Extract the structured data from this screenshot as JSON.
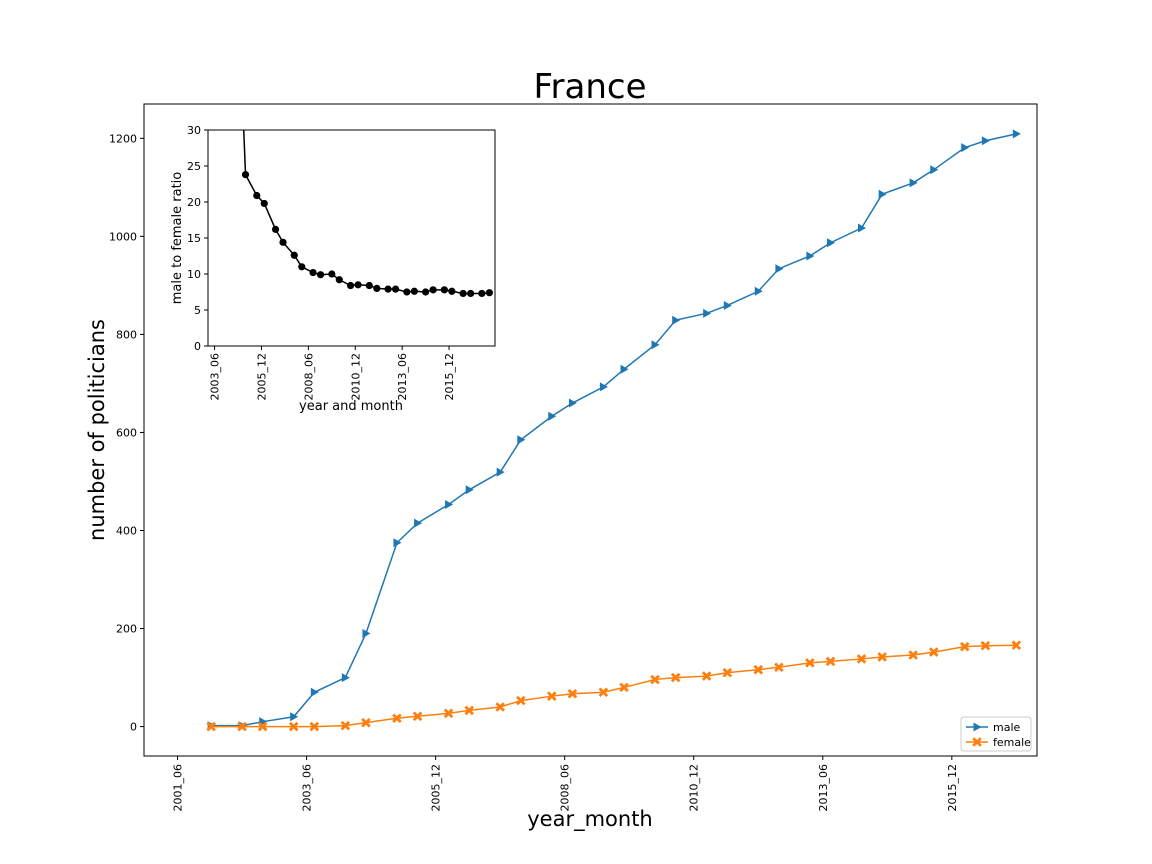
{
  "chart_data": [
    {
      "type": "line",
      "title": "France",
      "xlabel": "year_month",
      "ylabel": "number of politicians",
      "x_tick_labels": [
        "2001_06",
        "2003_06",
        "2005_12",
        "2008_06",
        "2010_12",
        "2013_06",
        "2015_12"
      ],
      "y_ticks": [
        0,
        200,
        400,
        600,
        800,
        1000,
        1200
      ],
      "xlim": [
        -0.65,
        16.65
      ],
      "ylim": [
        -60,
        1270
      ],
      "grid": false,
      "legend": "lower-right",
      "x": [
        0.65,
        1.25,
        1.65,
        2.25,
        2.65,
        3.25,
        3.65,
        4.25,
        4.65,
        5.25,
        5.65,
        6.25,
        6.65,
        7.25,
        7.65,
        8.25,
        8.65,
        9.25,
        9.65,
        10.25,
        10.65,
        11.25,
        11.65,
        12.25,
        12.65,
        13.25,
        13.65,
        14.25,
        14.65,
        15.25,
        15.65,
        16.25
      ],
      "series": [
        {
          "name": "male",
          "color": "#1f77b4",
          "marker": "triangle-right",
          "values": [
            2,
            2,
            10,
            20,
            70,
            100,
            190,
            375,
            415,
            453,
            483,
            519,
            585,
            633,
            660,
            693,
            729,
            779,
            829,
            843,
            859,
            888,
            934,
            960,
            987,
            1017,
            1086,
            1109,
            1136,
            1181,
            1195,
            1209
          ]
        },
        {
          "name": "female",
          "color": "#ff7f0e",
          "marker": "x",
          "values": [
            0,
            0,
            0,
            0,
            0,
            2,
            8,
            17,
            21,
            27,
            33,
            40,
            53,
            62,
            67,
            70,
            80,
            96,
            100,
            103,
            110,
            116,
            121,
            130,
            133,
            138,
            142,
            146,
            152,
            163,
            165,
            166
          ]
        }
      ]
    },
    {
      "type": "line",
      "title": "",
      "xlabel": "year and month",
      "ylabel": "male to female ratio",
      "x_tick_labels": [
        "2003_06",
        "2005_12",
        "2008_06",
        "2010_12",
        "2013_06",
        "2015_12"
      ],
      "y_ticks": [
        0,
        5,
        10,
        15,
        20,
        25,
        30
      ],
      "xlim": [
        -0.35,
        14.95
      ],
      "ylim": [
        0,
        30
      ],
      "grid": false,
      "x": [
        1.25,
        1.65,
        2.25,
        2.65,
        3.25,
        3.65,
        4.25,
        4.65,
        5.25,
        5.65,
        6.25,
        6.65,
        7.25,
        7.65,
        8.25,
        8.65,
        9.25,
        9.65,
        10.25,
        10.65,
        11.25,
        11.65,
        12.25,
        12.65,
        13.25,
        13.65,
        14.25,
        14.65
      ],
      "series": [
        {
          "name": "",
          "color": "#000000",
          "marker": "circle",
          "values": [
            50,
            23.8,
            20.9,
            19.8,
            16.2,
            14.4,
            12.6,
            11,
            10.2,
            9.9,
            10,
            9.2,
            8.4,
            8.5,
            8.4,
            8,
            7.9,
            7.9,
            7.5,
            7.6,
            7.5,
            7.8,
            7.8,
            7.6,
            7.3,
            7.3,
            7.3,
            7.4
          ]
        }
      ]
    }
  ]
}
